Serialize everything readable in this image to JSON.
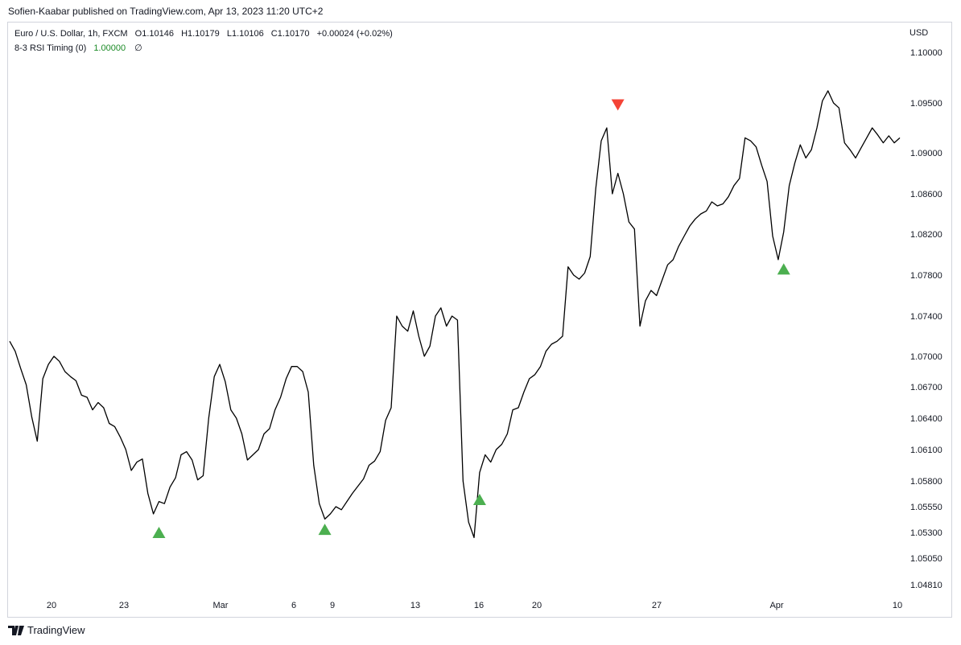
{
  "publisher": "Sofien-Kaabar published on TradingView.com, Apr 13, 2023 11:20 UTC+2",
  "header": {
    "symbol": "Euro / U.S. Dollar, 1h, FXCM",
    "open": "O1.10146",
    "high": "H1.10179",
    "low": "L1.10106",
    "close": "C1.10170",
    "change": "+0.00024 (+0.02%)"
  },
  "indicator": {
    "name": "8-3 RSI Timing (0)",
    "value": "1.00000",
    "hide_symbol": "∅"
  },
  "currency": "USD",
  "footer": {
    "brand": "TradingView"
  },
  "colors": {
    "candle": "#000000",
    "bullish_signal": "#4caf50",
    "bearish_signal": "#f44336",
    "indicator_value": "#1b8a26",
    "border": "#d1d4dc"
  },
  "chart_data": {
    "type": "line",
    "title": "Euro / U.S. Dollar, 1h, FXCM",
    "xlabel": "",
    "ylabel": "USD",
    "x_tick_labels": [
      "20",
      "23",
      "Mar",
      "6",
      "9",
      "13",
      "16",
      "20",
      "27",
      "Apr",
      "10"
    ],
    "y_tick_labels": [
      "1.10000",
      "1.09500",
      "1.09000",
      "1.08600",
      "1.08200",
      "1.07800",
      "1.07400",
      "1.07000",
      "1.06700",
      "1.06400",
      "1.06100",
      "1.05800",
      "1.05550",
      "1.05300",
      "1.05050",
      "1.04810"
    ],
    "ylim": [
      1.0481,
      1.1
    ],
    "grid": false,
    "legend": "none",
    "series": [
      {
        "values": [
          1.0715,
          1.0705,
          1.0688,
          1.0672,
          1.0641,
          1.0618,
          1.0678,
          1.0692,
          1.07,
          1.0695,
          1.0685,
          1.068,
          1.0676,
          1.0662,
          1.066,
          1.0648,
          1.0655,
          1.065,
          1.0635,
          1.0632,
          1.0622,
          1.061,
          1.059,
          1.0598,
          1.0601,
          1.0568,
          1.0548,
          1.056,
          1.0558,
          1.0574,
          1.0583,
          1.0605,
          1.0608,
          1.06,
          1.0581,
          1.0585,
          1.064,
          1.068,
          1.0692,
          1.0675,
          1.0648,
          1.064,
          1.0625,
          1.06,
          1.0605,
          1.061,
          1.0625,
          1.063,
          1.0648,
          1.066,
          1.0678,
          1.069,
          1.069,
          1.0685,
          1.0665,
          1.0595,
          1.0558,
          1.0543,
          1.0548,
          1.0555,
          1.0552,
          1.056,
          1.0568,
          1.0575,
          1.0582,
          1.0595,
          1.0599,
          1.0608,
          1.0638,
          1.065,
          1.074,
          1.073,
          1.0725,
          1.0745,
          1.072,
          1.07,
          1.071,
          1.074,
          1.0748,
          1.073,
          1.074,
          1.0736,
          1.058,
          1.054,
          1.0525,
          1.0588,
          1.0605,
          1.0598,
          1.061,
          1.0615,
          1.0625,
          1.0648,
          1.065,
          1.0665,
          1.0678,
          1.0682,
          1.069,
          1.0705,
          1.0712,
          1.0715,
          1.072,
          1.0788,
          1.078,
          1.0776,
          1.0782,
          1.0798,
          1.0865,
          1.0912,
          1.0925,
          1.086,
          1.088,
          1.086,
          1.0832,
          1.0825,
          1.073,
          1.0755,
          1.0765,
          1.076,
          1.0775,
          1.079,
          1.0795,
          1.0808,
          1.0818,
          1.0828,
          1.0835,
          1.084,
          1.0843,
          1.0852,
          1.0848,
          1.085,
          1.0857,
          1.0868,
          1.0875,
          1.0915,
          1.0912,
          1.0906,
          1.0888,
          1.0872,
          1.0818,
          1.0795,
          1.0822,
          1.0868,
          1.089,
          1.0908,
          1.0895,
          1.0903,
          1.0925,
          1.0952,
          1.0962,
          1.095,
          1.0945,
          1.091,
          1.0903,
          1.0895,
          1.0905,
          1.0915,
          1.0925,
          1.0918,
          1.091,
          1.0917,
          1.091,
          1.0915
        ]
      }
    ],
    "markers": [
      {
        "type": "buy",
        "x_label": "Feb 24",
        "index": 27,
        "y": 1.053
      },
      {
        "type": "buy",
        "x_label": "Mar 8",
        "index": 57,
        "y": 1.0533
      },
      {
        "type": "buy",
        "x_label": "Mar 15",
        "index": 85,
        "y": 1.0562
      },
      {
        "type": "sell",
        "x_label": "Mar 23",
        "index": 110,
        "y": 1.0948
      },
      {
        "type": "buy",
        "x_label": "Mar 31",
        "index": 140,
        "y": 1.0786
      }
    ]
  }
}
